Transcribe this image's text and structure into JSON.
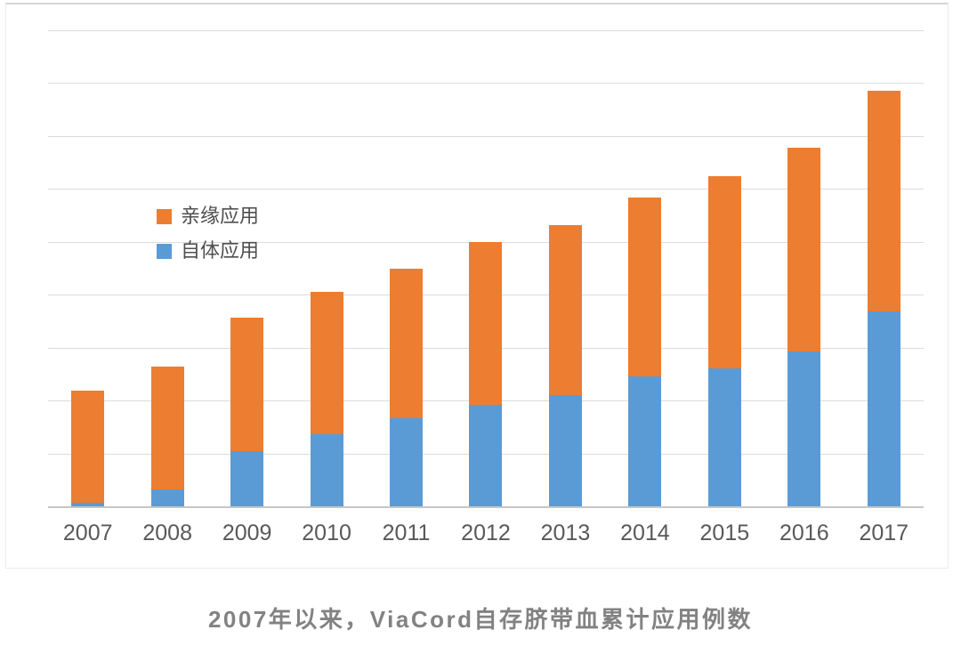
{
  "caption": "2007年以来，ViaCord自存脐带血累计应用例数",
  "colors": {
    "related_series": "#ED7D31",
    "autologous_series": "#5B9BD5",
    "gridline": "#DCDCDC",
    "axis_line": "#C6C6C6",
    "axis_label_text": "#595959",
    "caption_text": "#828282"
  },
  "legend": {
    "items": [
      {
        "label": "亲缘应用",
        "color": "#ED7D31"
      },
      {
        "label": "自体应用",
        "color": "#5B9BD5"
      }
    ]
  },
  "chart_data": {
    "type": "bar",
    "stacked": true,
    "title": "2007年以来，ViaCord自存脐带血累计应用例数",
    "xlabel": "",
    "ylabel": "",
    "categories": [
      "2007",
      "2008",
      "2009",
      "2010",
      "2011",
      "2012",
      "2013",
      "2014",
      "2015",
      "2016",
      "2017"
    ],
    "series": [
      {
        "name": "自体应用",
        "color": "#5B9BD5",
        "values": [
          3,
          16,
          52,
          68,
          83,
          96,
          105,
          123,
          130,
          146,
          184
        ]
      },
      {
        "name": "亲缘应用",
        "color": "#ED7D31",
        "values": [
          106,
          116,
          126,
          135,
          142,
          154,
          161,
          169,
          182,
          193,
          209
        ]
      }
    ],
    "totals": [
      109,
      132,
      178,
      203,
      225,
      250,
      266,
      292,
      312,
      339,
      393
    ],
    "ylim": [
      0,
      450
    ],
    "gridline_interval": 50,
    "y_tick_labels_visible": false,
    "values_estimated_from_gridlines": true,
    "grid": true,
    "legend_position": "inside-upper-left"
  }
}
